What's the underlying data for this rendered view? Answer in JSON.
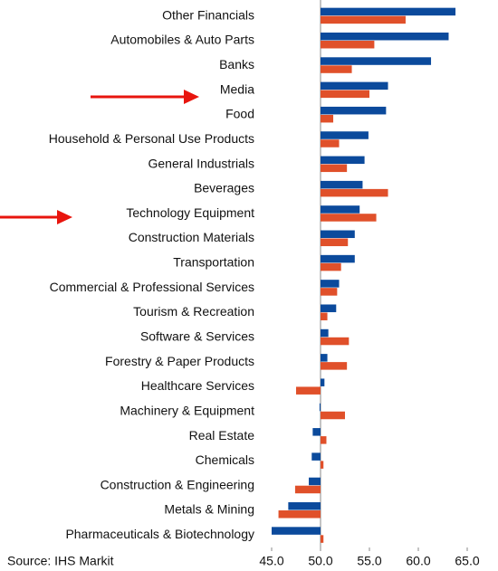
{
  "chart_data": {
    "type": "bar",
    "orientation": "horizontal",
    "baseline": 50,
    "categories": [
      "Other Financials",
      "Automobiles & Auto Parts",
      "Banks",
      "Media",
      "Food",
      "Household & Personal Use Products",
      "General Industrials",
      "Beverages",
      "Technology Equipment",
      "Construction Materials",
      "Transportation",
      "Commercial & Professional Services",
      "Tourism & Recreation",
      "Software & Services",
      "Forestry & Paper Products",
      "Healthcare Services",
      "Machinery & Equipment",
      "Real Estate",
      "Chemicals",
      "Construction & Engineering",
      "Metals & Mining",
      "Pharmaceuticals & Biotechnology"
    ],
    "series": [
      {
        "color": "#0b4a9c",
        "values": [
          63.8,
          63.1,
          61.3,
          56.9,
          56.7,
          54.9,
          54.5,
          54.3,
          54.0,
          53.5,
          53.5,
          51.9,
          51.6,
          50.8,
          50.7,
          50.4,
          49.9,
          49.2,
          49.1,
          48.8,
          46.7,
          45.0
        ]
      },
      {
        "color": "#e0502a",
        "values": [
          58.7,
          55.5,
          53.2,
          55.0,
          51.3,
          51.9,
          52.7,
          56.9,
          55.7,
          52.8,
          52.1,
          51.7,
          50.7,
          52.9,
          52.7,
          47.5,
          52.5,
          50.6,
          50.3,
          47.4,
          45.7,
          50.3
        ]
      }
    ],
    "xlim": [
      45,
      65
    ],
    "xticks": [
      {
        "value": 45,
        "label": "45.0"
      },
      {
        "value": 50,
        "label": "50.0"
      },
      {
        "value": 55,
        "label": "55.0"
      },
      {
        "value": 60,
        "label": "60.0"
      },
      {
        "value": 65,
        "label": "65.0"
      }
    ],
    "source": "Source: IHS Markit"
  }
}
